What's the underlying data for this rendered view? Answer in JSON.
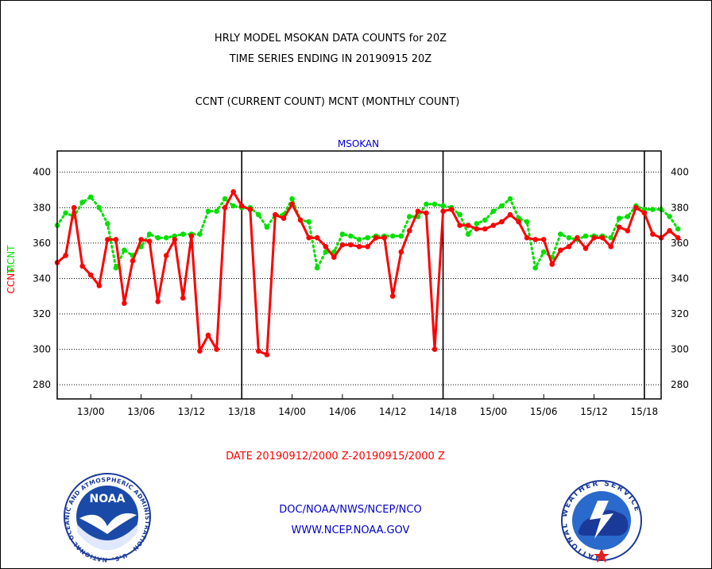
{
  "chart_data": {
    "type": "line",
    "title_lines": [
      "HRLY MODEL MSOKAN DATA COUNTS for 20Z",
      "TIME SERIES ENDING IN 20190915 20Z"
    ],
    "subtitle": "CCNT (CURRENT COUNT) MCNT (MONTHLY COUNT)",
    "panel_label": "MSOKAN",
    "ylabel_left": "CCNT",
    "ylabel_right": "MCNT",
    "ylim": [
      272,
      412
    ],
    "yticks": [
      "280",
      "300",
      "320",
      "340",
      "360",
      "380",
      "400"
    ],
    "x_range_hours": [
      0,
      72
    ],
    "xtick_labels": [
      "13/00",
      "13/06",
      "13/12",
      "13/18",
      "14/00",
      "14/06",
      "14/12",
      "14/18",
      "15/00",
      "15/06",
      "15/12",
      "15/18"
    ],
    "day_boundaries_labels": [
      "13/18",
      "14/18",
      "15/18"
    ],
    "grid": "horizontal dotted",
    "colors": {
      "ccnt": "#ff0000",
      "mcnt": "#00e000",
      "axis": "#000000",
      "label": "#0000cc"
    },
    "series": [
      {
        "name": "CCNT",
        "values": [
          349,
          353,
          380,
          347,
          342,
          336,
          362,
          362,
          326,
          350,
          362,
          361,
          327,
          353,
          362,
          329,
          364,
          299,
          308,
          300,
          380,
          389,
          381,
          379,
          299,
          297,
          376,
          374,
          382,
          373,
          363,
          363,
          358,
          352,
          359,
          359,
          358,
          358,
          363,
          363,
          330,
          355,
          367,
          378,
          377,
          300,
          378,
          379,
          370,
          370,
          368,
          368,
          370,
          372,
          376,
          372,
          363,
          362,
          362,
          348,
          356,
          358,
          363,
          357,
          363,
          363,
          358,
          369,
          367,
          380,
          377,
          365,
          363,
          367,
          363
        ]
      },
      {
        "name": "MCNT",
        "values": [
          370,
          377,
          375,
          383,
          386,
          380,
          371,
          346,
          356,
          353,
          358,
          365,
          363,
          363,
          364,
          365,
          365,
          365,
          378,
          378,
          385,
          381,
          380,
          380,
          376,
          369,
          376,
          376,
          385,
          373,
          372,
          346,
          355,
          355,
          365,
          364,
          362,
          363,
          364,
          364,
          364,
          364,
          375,
          375,
          382,
          382,
          381,
          380,
          376,
          365,
          371,
          373,
          378,
          381,
          385,
          374,
          372,
          346,
          355,
          352,
          365,
          363,
          362,
          364,
          364,
          364,
          363,
          374,
          375,
          381,
          379,
          379,
          379,
          375,
          368
        ]
      }
    ]
  },
  "footer": {
    "date_range": "DATE 20190912/2000 Z-20190915/2000 Z",
    "org_path": "DOC/NOAA/NWS/NCEP/NCO",
    "website": "WWW.NCEP.NOAA.GOV"
  },
  "logos": {
    "noaa": {
      "center_text": "NOAA",
      "ring_text": "NATIONAL OCEANIC AND ATMOSPHERIC ADMINISTRATION · U.S. DEPARTMENT OF COMMERCE"
    },
    "nws": {
      "ring_text": "NATIONAL WEATHER SERVICE"
    }
  }
}
